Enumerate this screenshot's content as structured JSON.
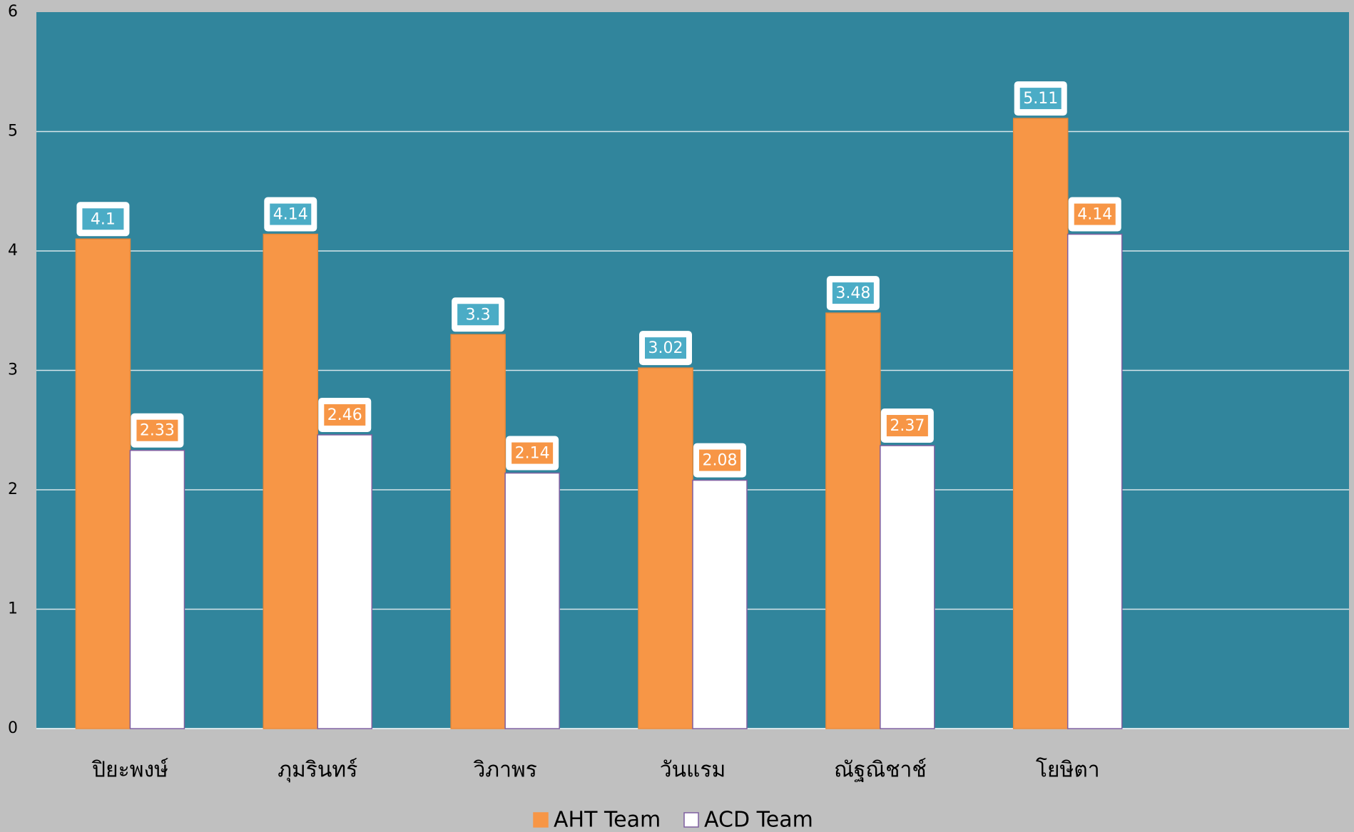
{
  "chart_data": {
    "type": "bar",
    "categories": [
      "ปิยะพงษ์",
      "ภุมรินทร์",
      "วิภาพร",
      "วันแรม",
      "ณัฐณิชาช์",
      "โยษิตา",
      null
    ],
    "series": [
      {
        "name": "AHT Team",
        "color": "#f79646",
        "values": [
          4.1,
          4.14,
          3.3,
          3.02,
          3.48,
          5.11,
          null
        ]
      },
      {
        "name": "ACD Team",
        "color": "#ffffff",
        "values": [
          2.33,
          2.46,
          2.14,
          2.08,
          2.37,
          4.14,
          null
        ]
      }
    ],
    "ylim": [
      0,
      6
    ],
    "yticks": [
      0,
      1,
      2,
      3,
      4,
      5,
      6
    ],
    "grid": true,
    "legend": "bottom"
  }
}
